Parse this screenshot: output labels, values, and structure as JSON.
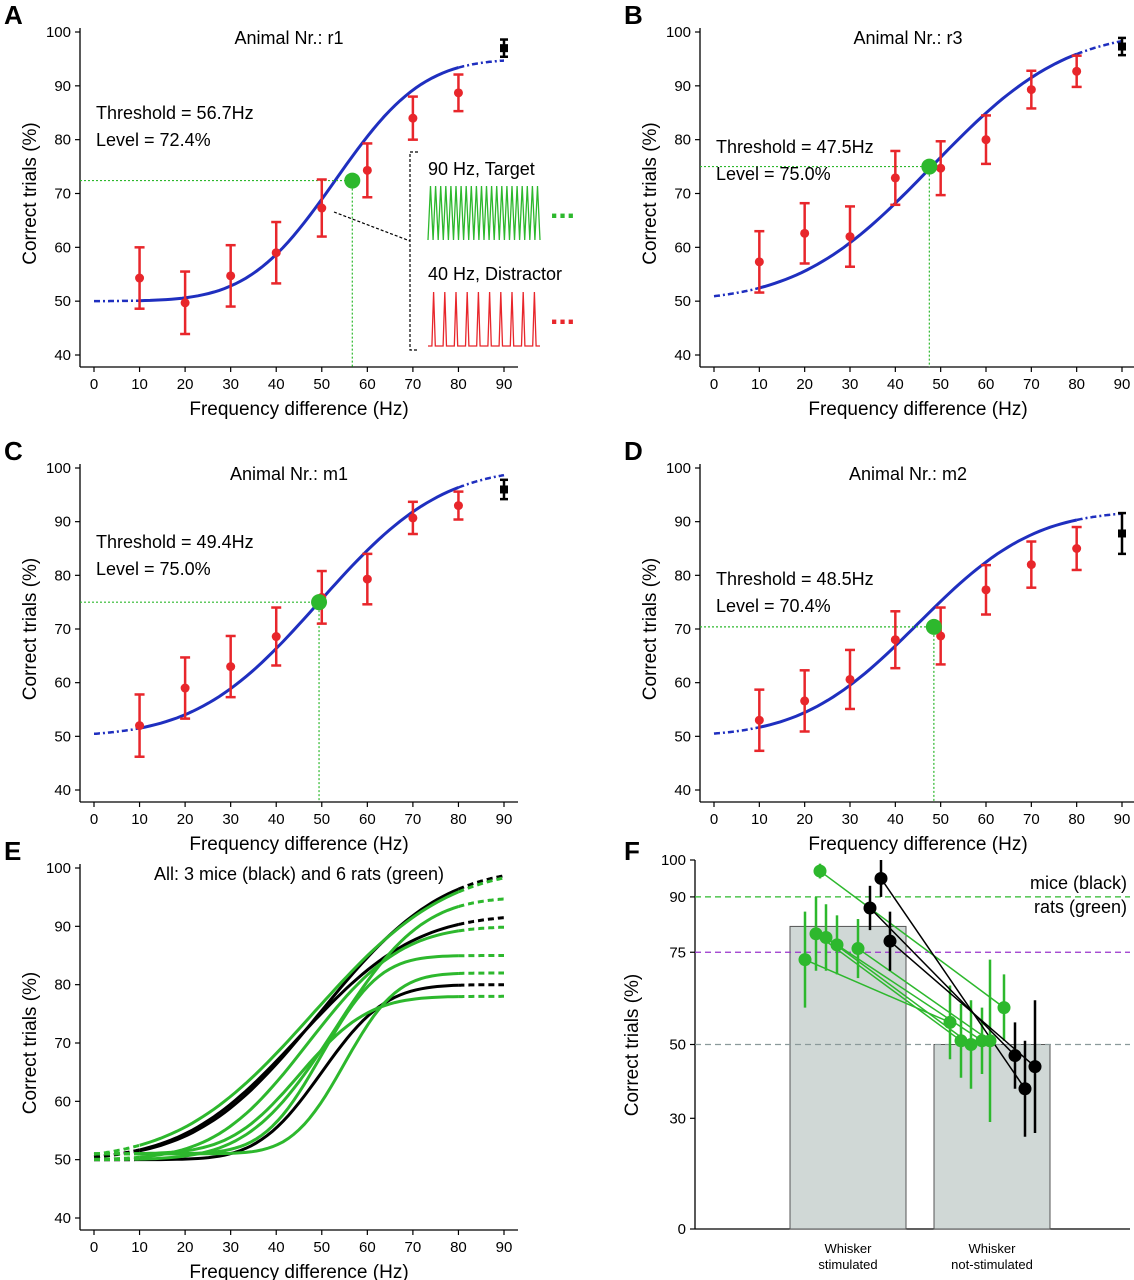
{
  "colors": {
    "fit": "#1f2fbf",
    "data": "#e8262b",
    "green": "#2db82d",
    "black": "#000000",
    "purple": "#9933cc",
    "grey": "#8a9a9a",
    "bar": "#d0d8d6"
  },
  "chart_data": [
    {
      "panel": "A",
      "type": "line",
      "title": "Animal Nr.: r1",
      "xlabel": "Frequency difference (Hz)",
      "ylabel": "Correct trials (%)",
      "xlim": [
        0,
        90
      ],
      "ylim": [
        40,
        100
      ],
      "xticks": [
        "0",
        "10",
        "20",
        "30",
        "40",
        "50",
        "60",
        "70",
        "80",
        "90"
      ],
      "yticks": [
        "40",
        "50",
        "60",
        "70",
        "80",
        "90",
        "100"
      ],
      "fit": {
        "bottom": 50,
        "top": 95,
        "mu": 53,
        "sigma": 15
      },
      "threshold_label": "Threshold = 56.7Hz",
      "level_label": "Level = 72.4%",
      "threshold": {
        "x": 56.7,
        "y": 72.4
      },
      "points": {
        "x": [
          10,
          20,
          30,
          40,
          50,
          60,
          70,
          80
        ],
        "y": [
          54.3,
          49.7,
          54.7,
          59.0,
          67.3,
          74.3,
          84.0,
          88.7
        ],
        "err": [
          5.7,
          5.8,
          5.7,
          5.7,
          5.3,
          5.0,
          4.0,
          3.4
        ]
      },
      "control": {
        "x": 90,
        "y": 97.0,
        "err": 1.6
      },
      "inset": {
        "target_label": "90 Hz, Target",
        "distractor_label": "40 Hz, Distractor",
        "dots": "..."
      }
    },
    {
      "panel": "B",
      "type": "line",
      "title": "Animal Nr.: r3",
      "xlabel": "Frequency difference (Hz)",
      "ylabel": "Correct trials (%)",
      "xlim": [
        0,
        90
      ],
      "ylim": [
        40,
        100
      ],
      "xticks": [
        "0",
        "10",
        "20",
        "30",
        "40",
        "50",
        "60",
        "70",
        "80",
        "90"
      ],
      "yticks": [
        "40",
        "50",
        "60",
        "70",
        "80",
        "90",
        "100"
      ],
      "fit": {
        "bottom": 50,
        "top": 100,
        "mu": 48,
        "sigma": 23
      },
      "threshold_label": "Threshold = 47.5Hz",
      "level_label": "Level = 75.0%",
      "threshold": {
        "x": 47.5,
        "y": 75.0
      },
      "points": {
        "x": [
          10,
          20,
          30,
          40,
          50,
          60,
          70,
          80
        ],
        "y": [
          57.3,
          62.6,
          62.0,
          72.9,
          74.7,
          80.0,
          89.3,
          92.7
        ],
        "err": [
          5.7,
          5.6,
          5.6,
          5.0,
          5.0,
          4.5,
          3.5,
          2.9
        ]
      },
      "control": {
        "x": 90,
        "y": 97.3,
        "err": 1.6
      }
    },
    {
      "panel": "C",
      "type": "line",
      "title": "Animal Nr.: m1",
      "xlabel": "Frequency difference (Hz)",
      "ylabel": "Correct trials (%)",
      "xlim": [
        0,
        90
      ],
      "ylim": [
        40,
        100
      ],
      "xticks": [
        "0",
        "10",
        "20",
        "30",
        "40",
        "50",
        "60",
        "70",
        "80",
        "90"
      ],
      "yticks": [
        "40",
        "50",
        "60",
        "70",
        "80",
        "90",
        "100"
      ],
      "fit": {
        "bottom": 50,
        "top": 100,
        "mu": 49.4,
        "sigma": 21
      },
      "threshold_label": "Threshold = 49.4Hz",
      "level_label": "Level = 75.0%",
      "threshold": {
        "x": 49.4,
        "y": 75.0
      },
      "points": {
        "x": [
          10,
          20,
          30,
          40,
          50,
          60,
          70,
          80
        ],
        "y": [
          52.0,
          59.0,
          63.0,
          68.6,
          75.9,
          79.3,
          90.7,
          93.0
        ],
        "err": [
          5.8,
          5.7,
          5.7,
          5.4,
          4.9,
          4.7,
          3.0,
          2.6
        ]
      },
      "control": {
        "x": 90,
        "y": 96.0,
        "err": 1.8
      }
    },
    {
      "panel": "D",
      "type": "line",
      "title": "Animal Nr.: m2",
      "xlabel": "Frequency difference (Hz)",
      "ylabel": "Correct trials (%)",
      "xlim": [
        0,
        90
      ],
      "ylim": [
        40,
        100
      ],
      "xticks": [
        "0",
        "10",
        "20",
        "30",
        "40",
        "50",
        "60",
        "70",
        "80",
        "90"
      ],
      "yticks": [
        "40",
        "50",
        "60",
        "70",
        "80",
        "90",
        "100"
      ],
      "fit": {
        "bottom": 50,
        "top": 92,
        "mu": 45,
        "sigma": 20
      },
      "threshold_label": "Threshold = 48.5Hz",
      "level_label": "Level = 70.4%",
      "threshold": {
        "x": 48.5,
        "y": 70.4
      },
      "points": {
        "x": [
          10,
          20,
          30,
          40,
          50,
          60,
          70,
          80
        ],
        "y": [
          53.0,
          56.6,
          60.6,
          68.0,
          68.7,
          77.3,
          82.0,
          85.0
        ],
        "err": [
          5.7,
          5.7,
          5.5,
          5.3,
          5.3,
          4.6,
          4.3,
          4.0
        ]
      },
      "control": {
        "x": 90,
        "y": 87.8,
        "err": 3.8
      }
    },
    {
      "panel": "E",
      "type": "line",
      "title": "All: 3 mice (black) and 6 rats (green)",
      "xlabel": "Frequency difference (Hz)",
      "ylabel": "Correct trials (%)",
      "xlim": [
        0,
        90
      ],
      "ylim": [
        40,
        100
      ],
      "xticks": [
        "0",
        "10",
        "20",
        "30",
        "40",
        "50",
        "60",
        "70",
        "80",
        "90"
      ],
      "yticks": [
        "40",
        "50",
        "60",
        "70",
        "80",
        "90",
        "100"
      ],
      "series": [
        {
          "group": "mice",
          "bottom": 50,
          "top": 100,
          "mu": 49.4,
          "sigma": 21
        },
        {
          "group": "mice",
          "bottom": 50,
          "top": 92,
          "mu": 45,
          "sigma": 20
        },
        {
          "group": "mice",
          "bottom": 50,
          "top": 80,
          "mu": 50,
          "sigma": 11
        },
        {
          "group": "rats",
          "bottom": 50,
          "top": 100,
          "mu": 48,
          "sigma": 23
        },
        {
          "group": "rats",
          "bottom": 50,
          "top": 95,
          "mu": 53,
          "sigma": 15
        },
        {
          "group": "rats",
          "bottom": 50,
          "top": 90,
          "mu": 47,
          "sigma": 16
        },
        {
          "group": "rats",
          "bottom": 51,
          "top": 85,
          "mu": 50,
          "sigma": 10
        },
        {
          "group": "rats",
          "bottom": 51,
          "top": 82,
          "mu": 55,
          "sigma": 9
        },
        {
          "group": "rats",
          "bottom": 51,
          "top": 78,
          "mu": 45,
          "sigma": 12
        }
      ]
    },
    {
      "panel": "F",
      "type": "bar",
      "xlabel": "",
      "ylabel": "Correct trials (%)",
      "ylim": [
        0,
        100
      ],
      "yticks": [
        "0",
        "30",
        "50",
        "75",
        "90",
        "100"
      ],
      "categories": [
        "Whisker\nstimulated",
        "Whisker\nnot-stimulated"
      ],
      "category_lines": [
        [
          "Whisker",
          "stimulated"
        ],
        [
          "Whisker",
          "not-stimulated"
        ]
      ],
      "bar_values": [
        82,
        50
      ],
      "reference_lines": [
        {
          "y": 90,
          "color": "green"
        },
        {
          "y": 75,
          "color": "purple"
        },
        {
          "y": 50,
          "color": "grey"
        }
      ],
      "legend": [
        "mice (black)",
        "rats (green)"
      ],
      "pairs": [
        {
          "group": "rats",
          "stim": {
            "y": 73,
            "err": 13
          },
          "nonstim": {
            "y": 56,
            "err": 10
          }
        },
        {
          "group": "rats",
          "stim": {
            "y": 80,
            "err": 10
          },
          "nonstim": {
            "y": 51,
            "err": 10
          }
        },
        {
          "group": "rats",
          "stim": {
            "y": 79,
            "err": 9
          },
          "nonstim": {
            "y": 50,
            "err": 12
          }
        },
        {
          "group": "rats",
          "stim": {
            "y": 77,
            "err": 8
          },
          "nonstim": {
            "y": 51,
            "err": 9
          }
        },
        {
          "group": "rats",
          "stim": {
            "y": 76,
            "err": 8
          },
          "nonstim": {
            "y": 51,
            "err": 22
          }
        },
        {
          "group": "rats",
          "stim": {
            "y": 97,
            "err": 2
          },
          "nonstim": {
            "y": 60,
            "err": 9
          }
        },
        {
          "group": "mice",
          "stim": {
            "y": 87,
            "err": 6
          },
          "nonstim": {
            "y": 47,
            "err": 9
          }
        },
        {
          "group": "mice",
          "stim": {
            "y": 95,
            "err": 5
          },
          "nonstim": {
            "y": 38,
            "err": 13
          }
        },
        {
          "group": "mice",
          "stim": {
            "y": 78,
            "err": 8
          },
          "nonstim": {
            "y": 44,
            "err": 18
          }
        }
      ]
    }
  ]
}
